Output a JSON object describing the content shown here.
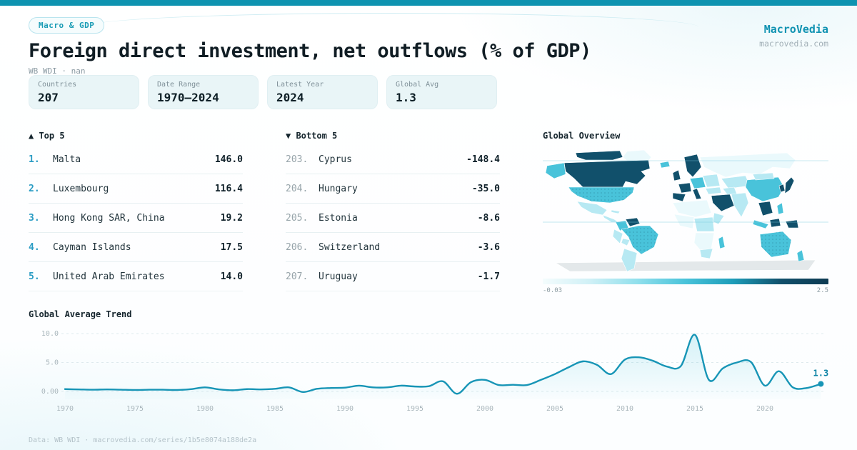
{
  "theme": {
    "topbar_color": "#0e93b0",
    "accent": "#1795b6",
    "brand_color": "#1193b2"
  },
  "header": {
    "badge": "Macro & GDP",
    "title": "Foreign direct investment, net outflows (% of GDP)",
    "subtitle": "WB WDI · nan",
    "brand": "MacroVedia",
    "brand_url": "macrovedia.com"
  },
  "stats": [
    {
      "label": "Countries",
      "value": "207"
    },
    {
      "label": "Date Range",
      "value": "1970—2024"
    },
    {
      "label": "Latest Year",
      "value": "2024"
    },
    {
      "label": "Global Avg",
      "value": "1.3"
    }
  ],
  "top5": {
    "heading": "▲ Top 5",
    "rows": [
      {
        "rank": "1.",
        "name": "Malta",
        "value": "146.0"
      },
      {
        "rank": "2.",
        "name": "Luxembourg",
        "value": "116.4"
      },
      {
        "rank": "3.",
        "name": "Hong Kong SAR, China",
        "value": "19.2"
      },
      {
        "rank": "4.",
        "name": "Cayman Islands",
        "value": "17.5"
      },
      {
        "rank": "5.",
        "name": "United Arab Emirates",
        "value": "14.0"
      }
    ]
  },
  "bottom5": {
    "heading": "▼ Bottom 5",
    "rows": [
      {
        "rank": "203.",
        "name": "Cyprus",
        "value": "-148.4"
      },
      {
        "rank": "204.",
        "name": "Hungary",
        "value": "-35.0"
      },
      {
        "rank": "205.",
        "name": "Estonia",
        "value": "-8.6"
      },
      {
        "rank": "206.",
        "name": "Switzerland",
        "value": "-3.6"
      },
      {
        "rank": "207.",
        "name": "Uruguay",
        "value": "-1.7"
      }
    ]
  },
  "map": {
    "heading": "Global Overview",
    "scale_min_label": "-0.03",
    "scale_max_label": "2.5",
    "palette": [
      "#eaf9fc",
      "#b7e9f3",
      "#49c3da",
      "#1d9db9",
      "#11506b"
    ],
    "antarctica_color": "#e3e8ea",
    "legend_gradient": [
      "#f4fcfd",
      "#cff0f6",
      "#8fdfec",
      "#49c3da",
      "#1d9db9",
      "#11506b",
      "#0d3a52"
    ],
    "regions": {
      "greenland": 0,
      "canada-arctic": 4,
      "canada": 4,
      "alaska": 2,
      "usa": 2,
      "mexico": 1,
      "central-america": 1,
      "cuba": 1,
      "colombia": 2,
      "venezuela": 4,
      "brazil": 2,
      "peru": 1,
      "bolivia": 1,
      "argentina": 1,
      "iceland": 2,
      "uk": 4,
      "scandinavia": 4,
      "france": 4,
      "spain": 4,
      "italy": 4,
      "central-europe": 2,
      "eastern-europe": 1,
      "russia": 0,
      "kazakhstan": 1,
      "turkey": 1,
      "middle-east": 1,
      "saudi-arabia": 4,
      "north-africa": 0,
      "west-africa": 0,
      "central-africa": 1,
      "horn-of-africa": 1,
      "southern-africa": 0,
      "south-africa": 1,
      "madagascar": 2,
      "india": 1,
      "china": 2,
      "mongolia": 1,
      "se-asia": 4,
      "indonesia": 2,
      "borneo": 4,
      "philippines": 2,
      "papua-new-guinea": 4,
      "japan": 4,
      "korea": 4,
      "australia": 2,
      "new-zealand": 2,
      "antarctica": -1
    }
  },
  "trend": {
    "heading": "Global Average Trend"
  },
  "chart_data": [
    {
      "type": "heatmap",
      "subtype": "choropleth-world-map",
      "title": "Global Overview",
      "colorbar": {
        "min": -0.03,
        "max": 2.5,
        "min_label": "-0.03",
        "max_label": "2.5",
        "position": "bottom"
      },
      "shading": "light-to-dark teal = low-to-high FDI net outflows"
    },
    {
      "type": "line",
      "title": "Global Average Trend",
      "x": [
        1970,
        1971,
        1972,
        1973,
        1974,
        1975,
        1976,
        1977,
        1978,
        1979,
        1980,
        1981,
        1982,
        1983,
        1984,
        1985,
        1986,
        1987,
        1988,
        1989,
        1990,
        1991,
        1992,
        1993,
        1994,
        1995,
        1996,
        1997,
        1998,
        1999,
        2000,
        2001,
        2002,
        2003,
        2004,
        2005,
        2006,
        2007,
        2008,
        2009,
        2010,
        2011,
        2012,
        2013,
        2014,
        2015,
        2016,
        2017,
        2018,
        2019,
        2020,
        2021,
        2022,
        2023,
        2024
      ],
      "values": [
        0.4,
        0.35,
        0.3,
        0.35,
        0.3,
        0.25,
        0.3,
        0.3,
        0.25,
        0.4,
        0.7,
        0.35,
        0.2,
        0.4,
        0.35,
        0.45,
        0.7,
        -0.1,
        0.45,
        0.6,
        0.65,
        1.0,
        0.7,
        0.7,
        1.0,
        0.85,
        0.9,
        1.75,
        -0.4,
        1.6,
        2.0,
        1.1,
        1.15,
        1.1,
        2.0,
        3.0,
        4.2,
        5.2,
        4.6,
        3.0,
        5.5,
        5.9,
        5.3,
        4.3,
        4.4,
        9.8,
        2.0,
        4.0,
        5.0,
        5.1,
        1.0,
        3.5,
        0.7,
        0.6,
        1.3
      ],
      "ylim": [
        0,
        10
      ],
      "yticks": [
        {
          "value": 10,
          "label": "10.0"
        },
        {
          "value": 5,
          "label": "5.0"
        },
        {
          "value": 0,
          "label": "0.00"
        }
      ],
      "xticks": [
        1970,
        1975,
        1980,
        1985,
        1990,
        1995,
        2000,
        2005,
        2010,
        2015,
        2020
      ],
      "grid": "dashed-horizontal",
      "area_fill": true,
      "line_color": "#1795b6",
      "end_point": {
        "year": 2024,
        "value": 1.3,
        "label": "1.3"
      }
    }
  ],
  "footer": {
    "text": "Data: WB WDI · macrovedia.com/series/1b5e8074a188de2a"
  }
}
